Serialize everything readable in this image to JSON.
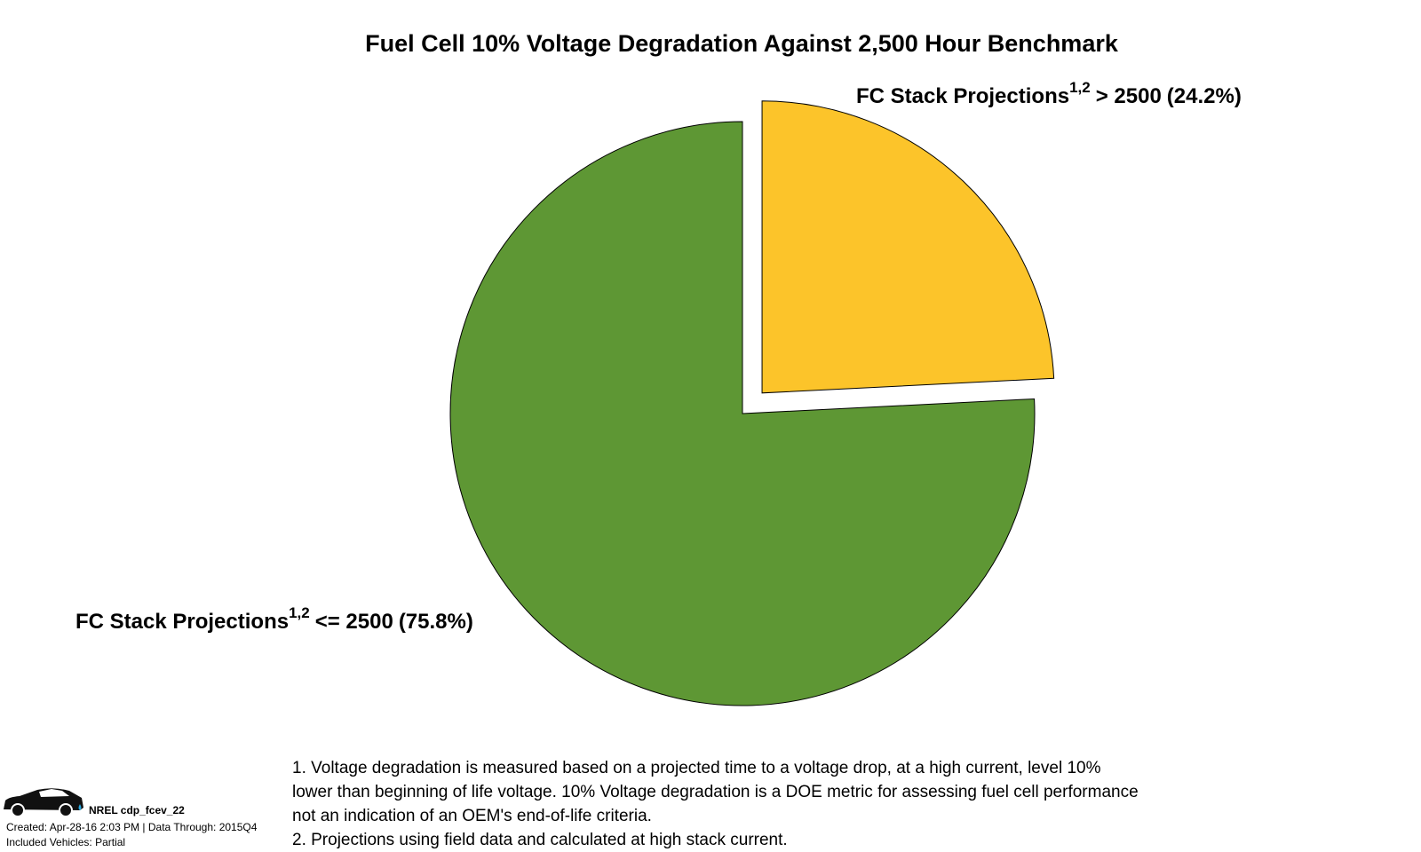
{
  "chart_data": {
    "type": "pie",
    "title": "Fuel Cell 10% Voltage Degradation Against 2,500 Hour Benchmark",
    "category_prefix": "FC Stack Projections",
    "footnote_marks": "1,2",
    "categories": [
      "> 2500",
      "<= 2500"
    ],
    "values": [
      24.2,
      75.8
    ],
    "value_labels": [
      "(24.2%)",
      "(75.8%)"
    ],
    "colors": [
      "#fcc42a",
      "#5e9734"
    ],
    "exploded": [
      true,
      false
    ],
    "footnotes": [
      "1. Voltage degradation is measured based on a projected time to a voltage drop, at a high current, level 10%",
      "lower than beginning of life voltage. 10% Voltage degradation is a DOE metric for assessing fuel cell performance",
      "not an indication of an OEM's end-of-life criteria.",
      "2. Projections using field data and calculated at high stack current."
    ],
    "footer": {
      "id": "NREL cdp_fcev_22",
      "created": "Created: Apr-28-16  2:03 PM | Data Through: 2015Q4",
      "vehicles": "Included Vehicles: Partial"
    }
  }
}
